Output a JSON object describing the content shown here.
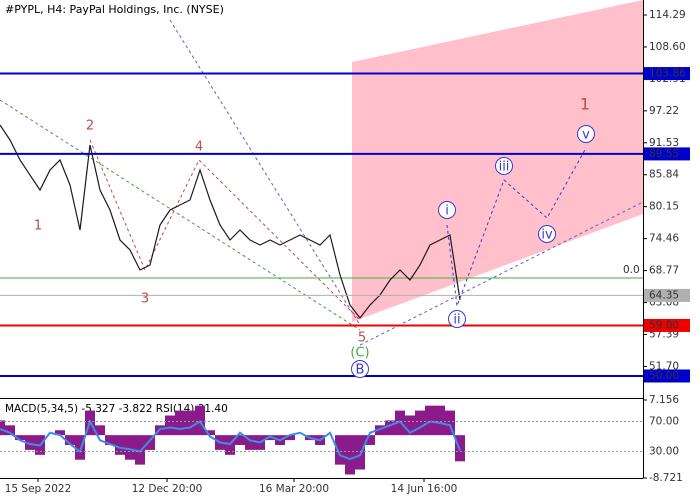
{
  "chart_data": {
    "type": "line",
    "title": "#PYPL, H4:  PayPal Holdings, Inc. (NYSE)",
    "color": "#1a1a1a",
    "values": [
      94.7,
      92.03,
      88.47,
      85.79,
      83.12,
      86.69,
      88.47,
      84.01,
      76.0,
      91.14,
      83.12,
      79.56,
      74.22,
      72.44,
      68.88,
      69.77,
      76.89,
      79.56,
      80.45,
      81.34,
      86.69,
      81.34,
      76.89,
      74.22,
      76.0,
      74.22,
      73.33,
      74.22,
      73.33,
      74.22,
      75.11,
      74.22,
      73.33,
      75.11,
      67.99,
      62.64,
      60.33,
      62.64,
      64.42,
      67.09,
      68.88,
      67.09,
      69.77,
      73.33,
      74.22,
      75.11,
      63.53
    ],
    "xlim": [
      0,
      64.3
    ],
    "xticks": [
      {
        "value": 3.8,
        "label": "15 Sep 2022"
      },
      {
        "value": 16.7,
        "label": "12 Dec 20:00"
      },
      {
        "value": 29.4,
        "label": "16 Mar 20:00"
      },
      {
        "value": 42.4,
        "label": "14 Jun 16:00"
      }
    ],
    "ylim": [
      46.08,
      116.96
    ],
    "yticks": [
      114.29,
      {
        "value": 108.6,
        "label": "108.60"
      },
      102.91,
      97.22,
      91.53,
      85.84,
      80.15,
      74.46,
      68.77,
      63.08,
      57.39,
      {
        "value": 51.7,
        "label": "51.70"
      }
    ],
    "levels": [
      {
        "value": 103.86,
        "label": "103.86",
        "color": "#0000cc"
      },
      {
        "value": 89.55,
        "label": "89.55",
        "color": "#0000cc"
      },
      {
        "value": 64.35,
        "label": "64.35",
        "color": "#b0b0b0"
      },
      {
        "value": 59,
        "label": "59.00",
        "color": "#ee0000"
      },
      {
        "value": 50,
        "label": "50.00",
        "color": "#0000cc"
      }
    ],
    "fib_level": {
      "value": 67.45,
      "label": "0.0",
      "color": "#44aa44"
    },
    "annotations": [
      {
        "text": "1",
        "color": "#b5504a"
      },
      {
        "text": "2",
        "color": "#b5504a"
      },
      {
        "text": "3",
        "color": "#b5504a"
      },
      {
        "text": "4",
        "color": "#b5504a"
      },
      {
        "text": "5",
        "color": "#b5504a"
      },
      {
        "text": "(C)",
        "color": "#44aa44"
      },
      {
        "text": "B",
        "color": "#3a3ad0"
      },
      {
        "text": "i",
        "color": "#3a3ad0"
      },
      {
        "text": "ii",
        "color": "#3a3ad0"
      },
      {
        "text": "iii",
        "color": "#3a3ad0"
      },
      {
        "text": "iv",
        "color": "#3a3ad0"
      },
      {
        "text": "v",
        "color": "#3a3ad0"
      },
      {
        "text": "1",
        "color": "#b5504a"
      }
    ],
    "indicator": {
      "label": "MACD(5,34,5) -5.327 -3.822 RSI(14) 31.40",
      "macd": {
        "values": [
          3,
          2,
          -1,
          -3,
          -4,
          0,
          1,
          -2,
          -5,
          5,
          2,
          -2,
          -4,
          -5,
          -6,
          -3,
          2,
          4,
          5,
          5,
          6,
          1,
          -3,
          -4,
          -2,
          -3,
          -3,
          -1,
          -2,
          -1,
          0,
          -1,
          -2,
          0,
          -6,
          -8,
          -7,
          -2,
          2,
          3,
          5,
          4,
          5,
          6,
          6,
          5,
          -5.327
        ],
        "color": "#8b1a8b",
        "ylim": [
          -8.721,
          7.156
        ],
        "yticks": [
          {
            "value": 7.156,
            "label": "7.156"
          },
          {
            "value": -8.721,
            "label": "-8.721"
          }
        ]
      },
      "rsi": {
        "values": [
          60,
          55,
          45,
          40,
          38,
          55,
          52,
          40,
          30,
          70,
          45,
          40,
          35,
          33,
          30,
          45,
          60,
          62,
          60,
          62,
          70,
          50,
          42,
          40,
          55,
          45,
          42,
          50,
          45,
          52,
          55,
          48,
          45,
          55,
          25,
          20,
          25,
          55,
          60,
          65,
          70,
          55,
          62,
          70,
          68,
          65,
          31.4
        ],
        "color": "#3a8ee6",
        "ylim": [
          -5.3,
          98.7
        ],
        "yticks": [
          {
            "value": 70,
            "label": "70.00"
          },
          {
            "value": 30,
            "label": "30.00"
          }
        ]
      }
    }
  }
}
